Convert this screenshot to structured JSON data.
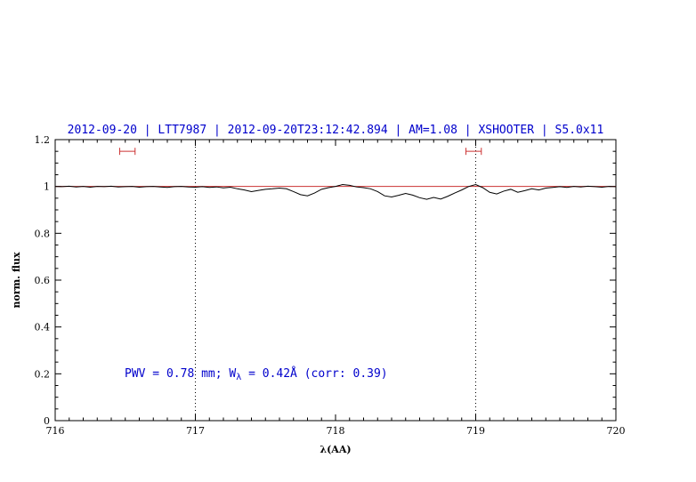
{
  "colors": {
    "title_text": "#0000cc",
    "annotation_text": "#0000cc",
    "spectrum_line": "#000000",
    "continuum_line": "#cc3333",
    "range_marker": "#cc3333",
    "frame": "#000000"
  },
  "chart_data": {
    "type": "line",
    "title": "2012-09-20 | LTT7987 | 2012-09-20T23:12:42.894 | AM=1.08 | XSHOOTER | S5.0x11",
    "xlabel": "λ(AA)",
    "ylabel": "norm. flux",
    "xlim": [
      716,
      720
    ],
    "ylim": [
      0,
      1.2
    ],
    "x_tick_values": [
      716,
      717,
      718,
      719,
      720
    ],
    "x_tick_labels": [
      "716",
      "717",
      "718",
      "719",
      "720"
    ],
    "y_tick_values": [
      0,
      0.2,
      0.4,
      0.6,
      0.8,
      1,
      1.2
    ],
    "y_tick_labels": [
      "0",
      "0.2",
      "0.4",
      "0.6",
      "0.8",
      "1",
      "1.2"
    ],
    "x_minor_step": 0.1,
    "y_minor_step": 0.05,
    "grid": "off",
    "dotted_vlines": [
      717,
      719
    ],
    "continuum_y": 1.0,
    "range_markers": [
      {
        "x1": 716.46,
        "x2": 716.57,
        "y": 1.15
      },
      {
        "x1": 718.93,
        "x2": 719.04,
        "y": 1.15
      }
    ],
    "annotation": {
      "pre": "PWV = 0.78 mm; W",
      "sub": "λ",
      "post": " = 0.42Å (corr: 0.39)",
      "x": 716.5,
      "y": 0.2
    },
    "series": [
      {
        "name": "spectrum",
        "color": "#000000",
        "x": [
          716,
          716.05,
          716.1,
          716.15,
          716.2,
          716.25,
          716.3,
          716.35,
          716.4,
          716.45,
          716.5,
          716.55,
          716.6,
          716.65,
          716.7,
          716.75,
          716.8,
          716.85,
          716.9,
          716.95,
          717,
          717.05,
          717.1,
          717.15,
          717.2,
          717.25,
          717.3,
          717.35,
          717.4,
          717.45,
          717.5,
          717.55,
          717.6,
          717.65,
          717.7,
          717.75,
          717.8,
          717.85,
          717.9,
          717.95,
          718,
          718.05,
          718.1,
          718.15,
          718.2,
          718.25,
          718.3,
          718.35,
          718.4,
          718.45,
          718.5,
          718.55,
          718.6,
          718.65,
          718.7,
          718.75,
          718.8,
          718.85,
          718.9,
          718.95,
          719,
          719.05,
          719.1,
          719.15,
          719.2,
          719.25,
          719.3,
          719.35,
          719.4,
          719.45,
          719.5,
          719.55,
          719.6,
          719.65,
          719.7,
          719.75,
          719.8,
          719.85,
          719.9,
          719.95,
          720
        ],
        "y": [
          1.0,
          0.999,
          1.001,
          0.998,
          1.0,
          0.997,
          1.0,
          0.999,
          1.001,
          0.998,
          0.999,
          1.0,
          0.997,
          0.999,
          1.0,
          0.998,
          0.996,
          0.999,
          1.0,
          0.998,
          0.997,
          0.999,
          0.996,
          0.998,
          0.994,
          0.997,
          0.99,
          0.985,
          0.978,
          0.983,
          0.988,
          0.99,
          0.993,
          0.99,
          0.978,
          0.965,
          0.96,
          0.972,
          0.988,
          0.995,
          1.0,
          1.008,
          1.005,
          0.998,
          0.995,
          0.99,
          0.978,
          0.96,
          0.955,
          0.962,
          0.97,
          0.963,
          0.952,
          0.945,
          0.953,
          0.946,
          0.958,
          0.972,
          0.985,
          1.0,
          1.008,
          0.995,
          0.975,
          0.968,
          0.98,
          0.988,
          0.975,
          0.982,
          0.99,
          0.985,
          0.993,
          0.996,
          0.999,
          0.996,
          1.0,
          0.998,
          1.001,
          0.999,
          0.997,
          1.0,
          0.999
        ]
      }
    ]
  }
}
